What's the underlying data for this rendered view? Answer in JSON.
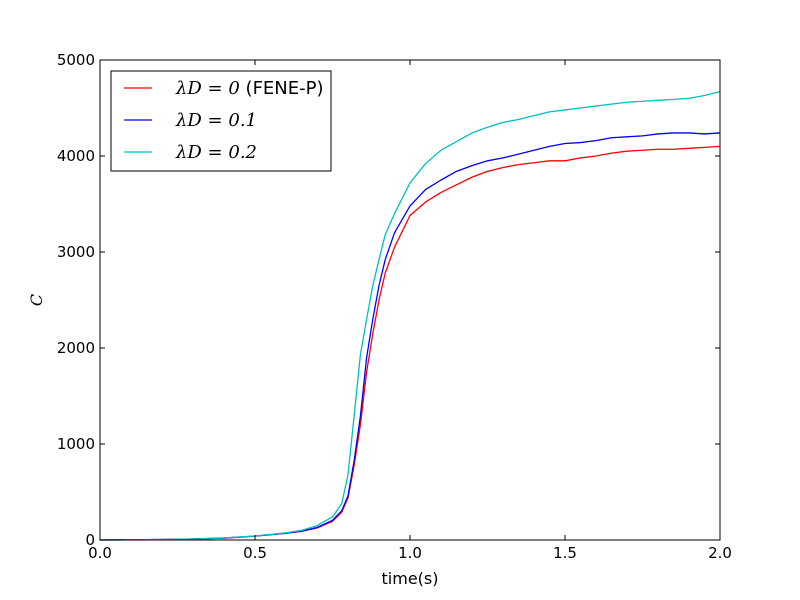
{
  "chart_data": {
    "type": "line",
    "title": "",
    "xlabel": "time(s)",
    "ylabel": "C",
    "xlim": [
      0.0,
      2.0
    ],
    "ylim": [
      0,
      5000
    ],
    "xticks": [
      0.0,
      0.5,
      1.0,
      1.5,
      2.0
    ],
    "xtick_labels": [
      "0.0",
      "0.5",
      "1.0",
      "1.5",
      "2.0"
    ],
    "yticks": [
      0,
      1000,
      2000,
      3000,
      4000,
      5000
    ],
    "ytick_labels": [
      "0",
      "1000",
      "2000",
      "3000",
      "4000",
      "5000"
    ],
    "grid": false,
    "legend_position": "top-left",
    "x": [
      0.0,
      0.1,
      0.2,
      0.3,
      0.4,
      0.5,
      0.6,
      0.65,
      0.7,
      0.75,
      0.78,
      0.8,
      0.82,
      0.84,
      0.86,
      0.88,
      0.9,
      0.92,
      0.95,
      1.0,
      1.05,
      1.1,
      1.15,
      1.2,
      1.25,
      1.3,
      1.35,
      1.4,
      1.45,
      1.5,
      1.55,
      1.6,
      1.65,
      1.7,
      1.75,
      1.8,
      1.85,
      1.9,
      1.95,
      2.0
    ],
    "series": [
      {
        "name": "λ_D = 0 (FENE-P)",
        "legend_math": "λD = 0",
        "legend_suffix": " (FENE-P)",
        "color": "#ff0000",
        "values": [
          0,
          2,
          5,
          10,
          20,
          40,
          70,
          90,
          125,
          195,
          290,
          440,
          780,
          1200,
          1750,
          2150,
          2500,
          2780,
          3050,
          3380,
          3520,
          3620,
          3700,
          3780,
          3840,
          3880,
          3910,
          3930,
          3950,
          3950,
          3980,
          4000,
          4030,
          4050,
          4060,
          4070,
          4070,
          4080,
          4090,
          4100
        ]
      },
      {
        "name": "λ_D = 0.1",
        "legend_math": "λD = 0.1",
        "legend_suffix": "",
        "color": "#0000ff",
        "values": [
          0,
          2,
          5,
          10,
          20,
          40,
          70,
          92,
          130,
          205,
          305,
          460,
          830,
          1290,
          1900,
          2300,
          2650,
          2920,
          3200,
          3480,
          3650,
          3750,
          3840,
          3900,
          3950,
          3980,
          4020,
          4060,
          4100,
          4130,
          4140,
          4160,
          4190,
          4200,
          4210,
          4230,
          4240,
          4240,
          4230,
          4240
        ]
      },
      {
        "name": "λ_D = 0.2",
        "legend_math": "λD = 0.2",
        "legend_suffix": "",
        "color": "#00bfbf",
        "values": [
          0,
          2,
          5,
          10,
          22,
          42,
          75,
          100,
          150,
          240,
          380,
          680,
          1300,
          1930,
          2300,
          2650,
          2920,
          3180,
          3400,
          3720,
          3920,
          4060,
          4150,
          4240,
          4300,
          4350,
          4380,
          4420,
          4460,
          4480,
          4500,
          4520,
          4540,
          4560,
          4570,
          4580,
          4590,
          4600,
          4630,
          4670
        ]
      }
    ]
  }
}
